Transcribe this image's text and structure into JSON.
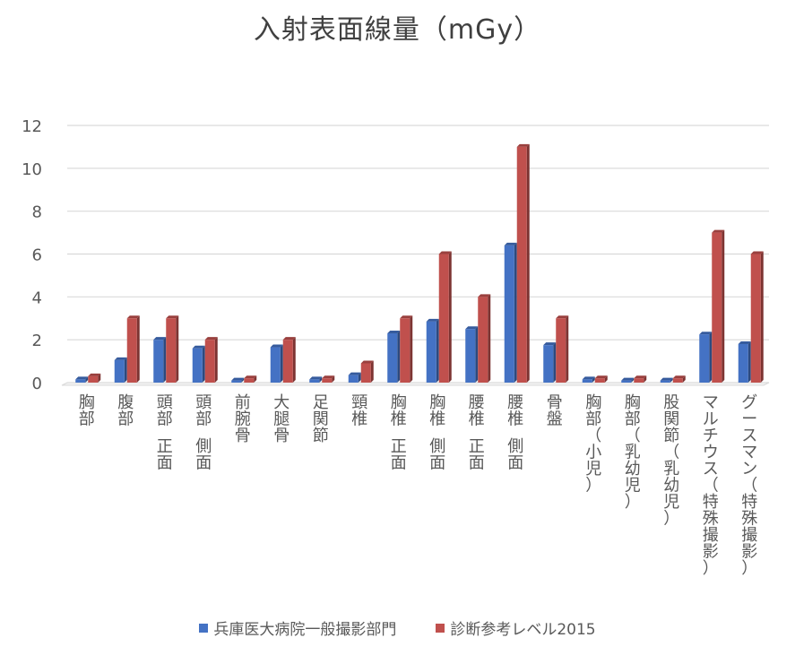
{
  "chart_data": {
    "type": "bar",
    "title": "入射表面線量（mGy）",
    "xlabel": "",
    "ylabel": "",
    "ylim": [
      0,
      12
    ],
    "yticks": [
      0,
      2,
      4,
      6,
      8,
      10,
      12
    ],
    "grid": true,
    "legend_position": "bottom",
    "categories": [
      "胸部",
      "腹部",
      "頭部　正面",
      "頭部　側面",
      "前腕骨",
      "大腿骨",
      "足関節",
      "頸椎",
      "胸椎　正面",
      "胸椎　側面",
      "腰椎　正面",
      "腰椎　側面",
      "骨盤",
      "胸部（小児）",
      "胸部（乳幼児）",
      "股関節（乳幼児）",
      "マルチウス（特殊撮影）",
      "グースマン（特殊撮影）"
    ],
    "series": [
      {
        "name": "兵庫医大病院一般撮影部門",
        "color": "#4472C4",
        "values": [
          0.15,
          1.05,
          2.0,
          1.6,
          0.1,
          1.65,
          0.15,
          0.35,
          2.3,
          2.85,
          2.5,
          6.4,
          1.75,
          0.15,
          0.1,
          0.1,
          2.25,
          1.8
        ]
      },
      {
        "name": "診断参考レベル2015",
        "color": "#C0504D",
        "values": [
          0.3,
          3.0,
          3.0,
          2.0,
          0.2,
          2.0,
          0.2,
          0.9,
          3.0,
          6.0,
          4.0,
          11.0,
          3.0,
          0.2,
          0.2,
          0.2,
          7.0,
          6.0
        ]
      }
    ]
  }
}
